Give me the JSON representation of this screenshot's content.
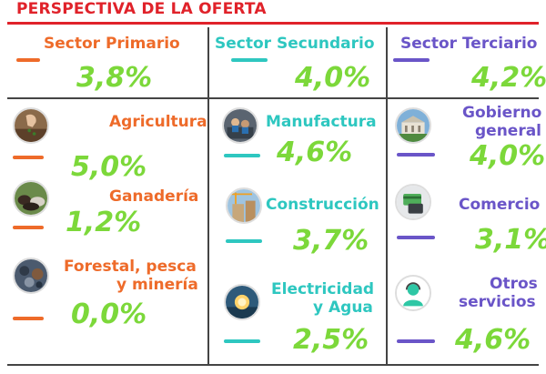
{
  "title": "PERSPECTIVA DE LA OFERTA",
  "colors": {
    "title_red": "#e0222a",
    "primario": "#ee6b2a",
    "secundario": "#2ec7c0",
    "terciario": "#6a55c8",
    "percent_green": "#7cd83a"
  },
  "sectors": {
    "primario": {
      "label": "Sector Primario",
      "value": "3,8%",
      "items": [
        {
          "label": "Agricultura",
          "value": "5,0%",
          "icon": "hand-sprouting-icon"
        },
        {
          "label": "Ganadería",
          "value": "1,2%",
          "icon": "cattle-icon"
        },
        {
          "label_line1": "Forestal, pesca",
          "label_line2": "y minería",
          "value": "0,0%",
          "icon": "minerals-icon"
        }
      ]
    },
    "secundario": {
      "label": "Sector Secundario",
      "value": "4,0%",
      "items": [
        {
          "label": "Manufactura",
          "value": "4,6%",
          "icon": "factory-workers-icon"
        },
        {
          "label": "Construcción",
          "value": "3,7%",
          "icon": "construction-crane-icon"
        },
        {
          "label_line1": "Electricidad",
          "label_line2": "y Agua",
          "value": "2,5%",
          "icon": "lightbulb-icon"
        }
      ]
    },
    "terciario": {
      "label": "Sector Terciario",
      "value": "4,2%",
      "items": [
        {
          "label_line1": "Gobierno",
          "label_line2": "general",
          "value": "4,0%",
          "icon": "government-building-icon"
        },
        {
          "label": "Comercio",
          "value": "3,1%",
          "icon": "card-payment-icon"
        },
        {
          "label_line1": "Otros",
          "label_line2": "servicios",
          "value": "4,6%",
          "icon": "service-agent-icon"
        }
      ]
    }
  }
}
